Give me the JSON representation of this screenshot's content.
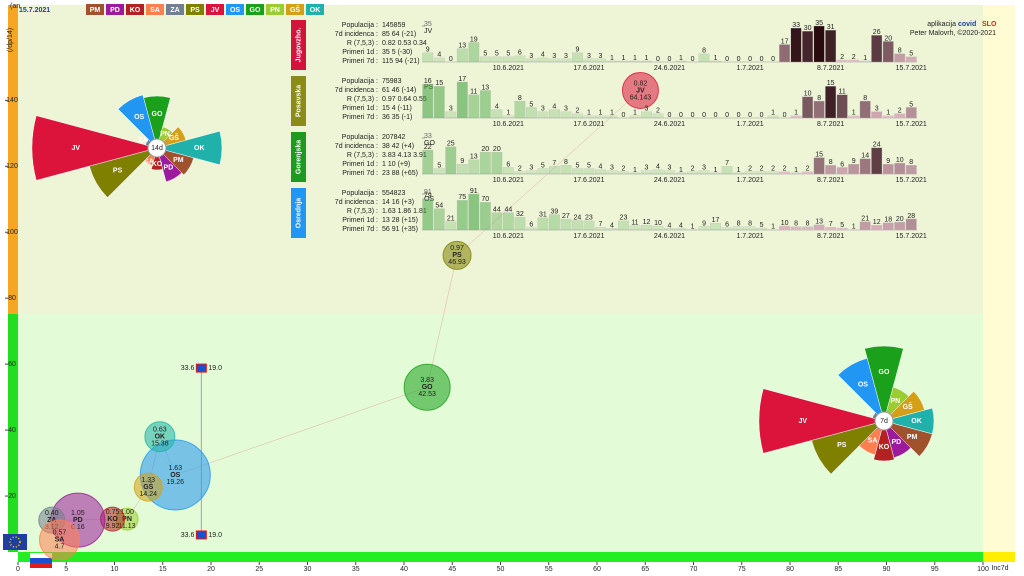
{
  "header": {
    "corner": "(an",
    "date": "15.7.2021",
    "regions": [
      {
        "code": "PM",
        "color": "#a0522d"
      },
      {
        "code": "PD",
        "color": "#9c1b9c"
      },
      {
        "code": "KO",
        "color": "#b22222"
      },
      {
        "code": "SA",
        "color": "#ff7f50"
      },
      {
        "code": "ZA",
        "color": "#708090"
      },
      {
        "code": "PS",
        "color": "#808000"
      },
      {
        "code": "JV",
        "color": "#dc143c"
      },
      {
        "code": "OS",
        "color": "#2196f3"
      },
      {
        "code": "GO",
        "color": "#1aa01a"
      },
      {
        "code": "PN",
        "color": "#9acd32"
      },
      {
        "code": "GŠ",
        "color": "#d4a017"
      },
      {
        "code": "OK",
        "color": "#20b2aa"
      }
    ]
  },
  "credits": {
    "app": "aplikacija",
    "brand_a": "covid",
    "brand_b": "SLO",
    "author": "Peter Malovrh, ©2020-2021"
  },
  "chart_data": [
    {
      "type": "bubble",
      "y_label": "(/dp/14)",
      "x_label": "Inc7d",
      "xlim": [
        0,
        100
      ],
      "xticks": [
        0,
        5,
        10,
        15,
        20,
        25,
        30,
        35,
        40,
        45,
        50,
        55,
        60,
        65,
        70,
        75,
        80,
        85,
        90,
        95,
        100
      ],
      "ylim": [
        0,
        168
      ],
      "yticks": [
        20,
        40,
        60,
        80,
        100,
        120,
        140
      ],
      "points": [
        {
          "name": "JV",
          "x": 64.5,
          "y": 143,
          "size": 18,
          "labels": [
            "0.82",
            "64.143"
          ]
        },
        {
          "name": "PS",
          "x": 45.5,
          "y": 93,
          "size": 14,
          "labels": [
            "0.97",
            "46.93"
          ]
        },
        {
          "name": "GO",
          "x": 42.4,
          "y": 53,
          "size": 23,
          "labels": [
            "3.83",
            "42.53"
          ]
        },
        {
          "name": "OS",
          "x": 16.3,
          "y": 26.4,
          "size": 35,
          "labels": [
            "1.63",
            "19.26"
          ]
        },
        {
          "name": "OK",
          "x": 14.7,
          "y": 38,
          "size": 15,
          "labels": [
            "0.63",
            "15.38"
          ]
        },
        {
          "name": "GŠ",
          "x": 13.5,
          "y": 22.7,
          "size": 14,
          "labels": [
            "1.33",
            "14.24"
          ]
        },
        {
          "name": "PN",
          "x": 11.3,
          "y": 13,
          "size": 11,
          "labels": [
            "1.00",
            "11.13"
          ]
        },
        {
          "name": "KO",
          "x": 9.8,
          "y": 13,
          "size": 12,
          "labels": [
            "0.75",
            "9.92"
          ]
        },
        {
          "name": "PD",
          "x": 6.2,
          "y": 12.7,
          "size": 27,
          "labels": [
            "1.05",
            "6.16"
          ]
        },
        {
          "name": "ZA",
          "x": 3.5,
          "y": 12.7,
          "size": 13,
          "labels": [
            "0.40",
            "3.12"
          ]
        },
        {
          "name": "SA",
          "x": 4.3,
          "y": 6.7,
          "size": 20,
          "labels": [
            "0.57",
            "4.7"
          ]
        }
      ],
      "reference": {
        "x": 19,
        "y_top": 58.8,
        "y_bottom": 8.2,
        "left_label": "33.6",
        "right_label": "19.0"
      }
    },
    {
      "type": "rose",
      "center_label": "14d",
      "categories": [
        "GO",
        "PN",
        "GŠ",
        "OK",
        "PM",
        "PD",
        "KO",
        "SA",
        "PS",
        "JV",
        "ZA",
        "OS"
      ],
      "values": [
        52,
        22,
        30,
        65,
        38,
        35,
        22,
        18,
        70,
        125,
        12,
        55
      ]
    },
    {
      "type": "rose",
      "center_label": "7d",
      "categories": [
        "GO",
        "PN",
        "GŠ",
        "OK",
        "PM",
        "PD",
        "KO",
        "SA",
        "PS",
        "JV",
        "ZA",
        "OS"
      ],
      "values": [
        75,
        35,
        42,
        50,
        50,
        38,
        40,
        35,
        75,
        125,
        12,
        65
      ]
    },
    {
      "type": "bar",
      "name": "Jugovzho.",
      "color": "#d2143c",
      "code": "JV",
      "ylim": [
        0,
        35
      ],
      "yticks": [
        35
      ],
      "stats": [
        {
          "label": "Populacija :",
          "value": "145859"
        },
        {
          "label": "7d incidenca :",
          "value": "85 64 (-21)"
        },
        {
          "label": "R (7,5,3) :",
          "value": "0.82 0.53 0.34"
        },
        {
          "label": "Primeri 1d :",
          "value": "35 5 (-30)"
        },
        {
          "label": "Primeri 7d :",
          "value": "115 94 (-21)"
        }
      ],
      "categories": [
        null,
        null,
        null,
        null,
        null,
        null,
        null,
        "10.6.2021",
        null,
        null,
        null,
        null,
        null,
        null,
        "17.6.2021",
        null,
        null,
        null,
        null,
        null,
        null,
        "24.6.2021",
        null,
        null,
        null,
        null,
        null,
        null,
        "1.7.2021",
        null,
        null,
        null,
        null,
        null,
        null,
        "8.7.2021",
        null,
        null,
        null,
        null,
        null,
        null,
        "15.7.2021"
      ],
      "values": [
        9,
        4,
        0,
        13,
        19,
        5,
        5,
        5,
        6,
        3,
        4,
        3,
        3,
        9,
        3,
        3,
        1,
        1,
        1,
        1,
        0,
        0,
        1,
        0,
        8,
        1,
        0,
        0,
        0,
        0,
        0,
        17,
        33,
        30,
        35,
        31,
        2,
        2,
        1,
        26,
        20,
        8,
        5
      ]
    },
    {
      "type": "bar",
      "name": "Posavska",
      "color": "#8b8b1a",
      "code": "PS",
      "ylim": [
        0,
        17
      ],
      "yticks": [],
      "stats": [
        {
          "label": "Populacija :",
          "value": "75983"
        },
        {
          "label": "7d incidenca :",
          "value": "61 46 (-14)"
        },
        {
          "label": "R (7,5,3) :",
          "value": "0.97 0.64 0.55"
        },
        {
          "label": "Primeri 1d :",
          "value": "15 4 (-11)"
        },
        {
          "label": "Primeri 7d :",
          "value": "36 35 (-1)"
        }
      ],
      "categories": [
        null,
        null,
        null,
        null,
        null,
        null,
        null,
        "10.6.2021",
        null,
        null,
        null,
        null,
        null,
        null,
        "17.6.2021",
        null,
        null,
        null,
        null,
        null,
        null,
        "24.6.2021",
        null,
        null,
        null,
        null,
        null,
        null,
        "1.7.2021",
        null,
        null,
        null,
        null,
        null,
        null,
        "8.7.2021",
        null,
        null,
        null,
        null,
        null,
        null,
        "15.7.2021"
      ],
      "values": [
        16,
        15,
        3,
        17,
        11,
        13,
        4,
        1,
        8,
        5,
        3,
        4,
        3,
        2,
        1,
        1,
        1,
        0,
        1,
        3,
        2,
        0,
        0,
        0,
        0,
        0,
        0,
        0,
        0,
        0,
        1,
        0,
        1,
        10,
        8,
        15,
        11,
        1,
        8,
        3,
        1,
        2,
        5
      ]
    },
    {
      "type": "bar",
      "name": "Gorenjska",
      "color": "#1e9b1e",
      "code": "GO",
      "ylim": [
        0,
        33
      ],
      "yticks": [
        33
      ],
      "stats": [
        {
          "label": "Populacija :",
          "value": "207842"
        },
        {
          "label": "7d incidenca :",
          "value": "38 42 (+4)"
        },
        {
          "label": "R (7,5,3) :",
          "value": "3.83 4.13 3.91"
        },
        {
          "label": "Primeri 1d :",
          "value": "1 10 (+9)"
        },
        {
          "label": "Primeri 7d :",
          "value": "23 88 (+65)"
        }
      ],
      "categories": [
        null,
        null,
        null,
        null,
        null,
        null,
        null,
        "10.6.2021",
        null,
        null,
        null,
        null,
        null,
        null,
        "17.6.2021",
        null,
        null,
        null,
        null,
        null,
        null,
        "24.6.2021",
        null,
        null,
        null,
        null,
        null,
        null,
        "1.7.2021",
        null,
        null,
        null,
        null,
        null,
        null,
        "8.7.2021",
        null,
        null,
        null,
        null,
        null,
        null,
        "15.7.2021"
      ],
      "values": [
        22,
        5,
        25,
        9,
        13,
        20,
        20,
        6,
        2,
        3,
        5,
        7,
        8,
        5,
        5,
        4,
        3,
        2,
        1,
        3,
        4,
        3,
        1,
        2,
        3,
        1,
        7,
        1,
        2,
        2,
        2,
        2,
        1,
        2,
        15,
        8,
        6,
        9,
        14,
        24,
        9,
        10,
        8
      ]
    },
    {
      "type": "bar",
      "name": "Osrednja",
      "color": "#2196f3",
      "code": "OS",
      "ylim": [
        0,
        91
      ],
      "yticks": [
        91
      ],
      "stats": [
        {
          "label": "Populacija :",
          "value": "554823"
        },
        {
          "label": "7d incidenca :",
          "value": "14 16 (+3)"
        },
        {
          "label": "R (7,5,3) :",
          "value": "1.63 1.86 1.81"
        },
        {
          "label": "Primeri 1d :",
          "value": "13 28 (+15)"
        },
        {
          "label": "Primeri 7d :",
          "value": "56 91 (+35)"
        }
      ],
      "categories": [
        null,
        null,
        null,
        null,
        null,
        null,
        null,
        "10.6.2021",
        null,
        null,
        null,
        null,
        null,
        null,
        "17.6.2021",
        null,
        null,
        null,
        null,
        null,
        null,
        "24.6.2021",
        null,
        null,
        null,
        null,
        null,
        null,
        "1.7.2021",
        null,
        null,
        null,
        null,
        null,
        null,
        "8.7.2021",
        null,
        null,
        null,
        null,
        null,
        null,
        "15.7.2021"
      ],
      "values": [
        79,
        54,
        21,
        75,
        91,
        70,
        44,
        44,
        32,
        6,
        31,
        39,
        27,
        24,
        23,
        7,
        4,
        23,
        11,
        12,
        10,
        4,
        4,
        1,
        9,
        17,
        6,
        8,
        8,
        5,
        1,
        10,
        8,
        8,
        13,
        7,
        5,
        1,
        21,
        12,
        18,
        20,
        28
      ]
    }
  ]
}
